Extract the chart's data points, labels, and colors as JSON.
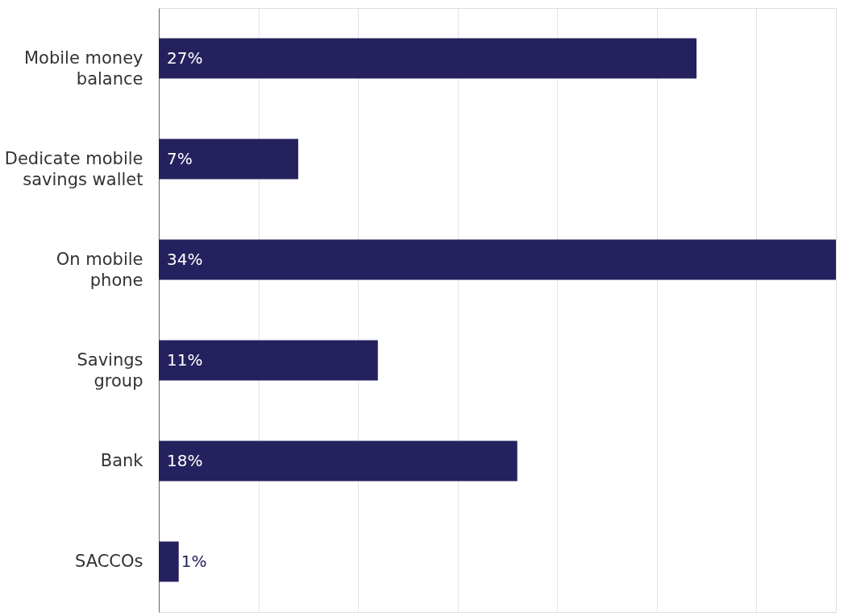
{
  "chart_data": {
    "type": "bar",
    "orientation": "horizontal",
    "categories": [
      "Mobile money balance",
      "Dedicate mobile savings wallet",
      "On mobile phone",
      "Savings group",
      "Bank",
      "SACCOs"
    ],
    "values": [
      27,
      7,
      34,
      11,
      18,
      1
    ],
    "value_labels": [
      "27%",
      "7%",
      "34%",
      "11%",
      "18%",
      "1%"
    ],
    "color": "#24215e",
    "xlim": [
      0,
      34
    ],
    "xticks": [
      {
        "value": 5,
        "label": null
      },
      {
        "value": 10,
        "label": null
      },
      {
        "value": 15,
        "label": null
      },
      {
        "value": 20,
        "label": null
      },
      {
        "value": 25,
        "label": null
      },
      {
        "value": 30,
        "label": null
      }
    ],
    "grid": "x",
    "tick_labels": "y"
  }
}
